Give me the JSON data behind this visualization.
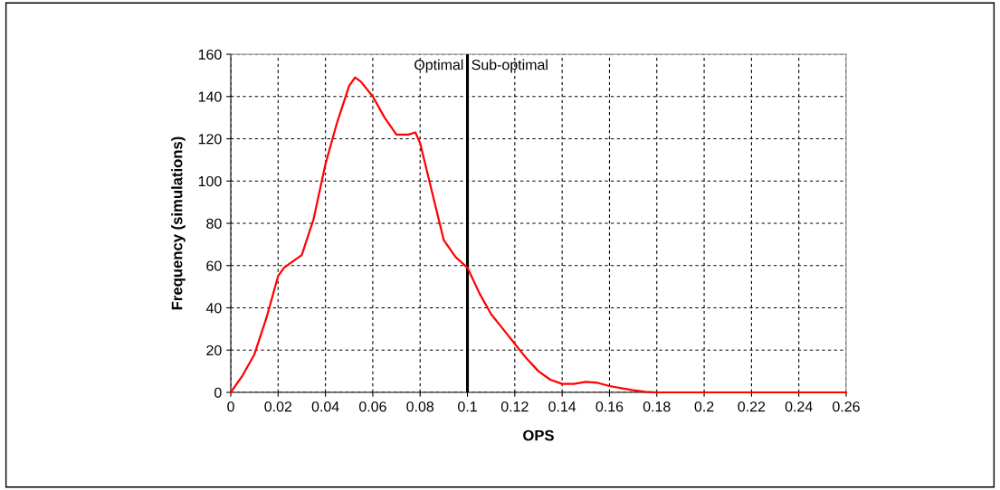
{
  "chart_data": {
    "type": "line",
    "xlabel": "OPS",
    "ylabel": "Frequency (simulations)",
    "x": [
      0,
      0.005,
      0.01,
      0.015,
      0.02,
      0.0225,
      0.025,
      0.03,
      0.035,
      0.04,
      0.045,
      0.05,
      0.0525,
      0.055,
      0.06,
      0.065,
      0.07,
      0.075,
      0.078,
      0.08,
      0.085,
      0.09,
      0.095,
      0.1,
      0.105,
      0.11,
      0.115,
      0.12,
      0.125,
      0.13,
      0.135,
      0.14,
      0.145,
      0.15,
      0.155,
      0.16,
      0.165,
      0.17,
      0.175,
      0.18,
      0.2,
      0.22,
      0.24,
      0.26
    ],
    "series": [
      {
        "color": "#ff0000",
        "values": [
          0,
          8,
          18,
          35,
          55,
          59,
          61,
          65,
          82,
          108,
          128,
          145,
          149,
          147,
          140,
          130,
          122,
          122,
          123,
          118,
          95,
          72,
          64,
          59,
          47,
          37,
          30,
          23,
          16,
          10,
          6,
          4,
          4,
          5,
          4.5,
          3,
          2,
          1,
          0.3,
          0,
          0,
          0,
          0,
          0
        ]
      }
    ],
    "xlim": [
      0,
      0.26
    ],
    "xticks": [
      0,
      0.02,
      0.04,
      0.06,
      0.08,
      0.1,
      0.12,
      0.14,
      0.16,
      0.18,
      0.2,
      0.22,
      0.24,
      0.26
    ],
    "ylim": [
      0,
      160
    ],
    "yticks": [
      0,
      20,
      40,
      60,
      80,
      100,
      120,
      140,
      160
    ],
    "grid": true,
    "legend": false,
    "marker": "none",
    "line_style": "solid",
    "ref_lines": [
      {
        "axis": "x",
        "value": 0.1,
        "color": "#000000",
        "line_style": "solid"
      }
    ],
    "annotations": [
      {
        "text": "Optimal",
        "x": 0.1,
        "y": 160
      },
      {
        "text": "Sub-optimal",
        "x": 0.1,
        "y": 160
      }
    ]
  }
}
